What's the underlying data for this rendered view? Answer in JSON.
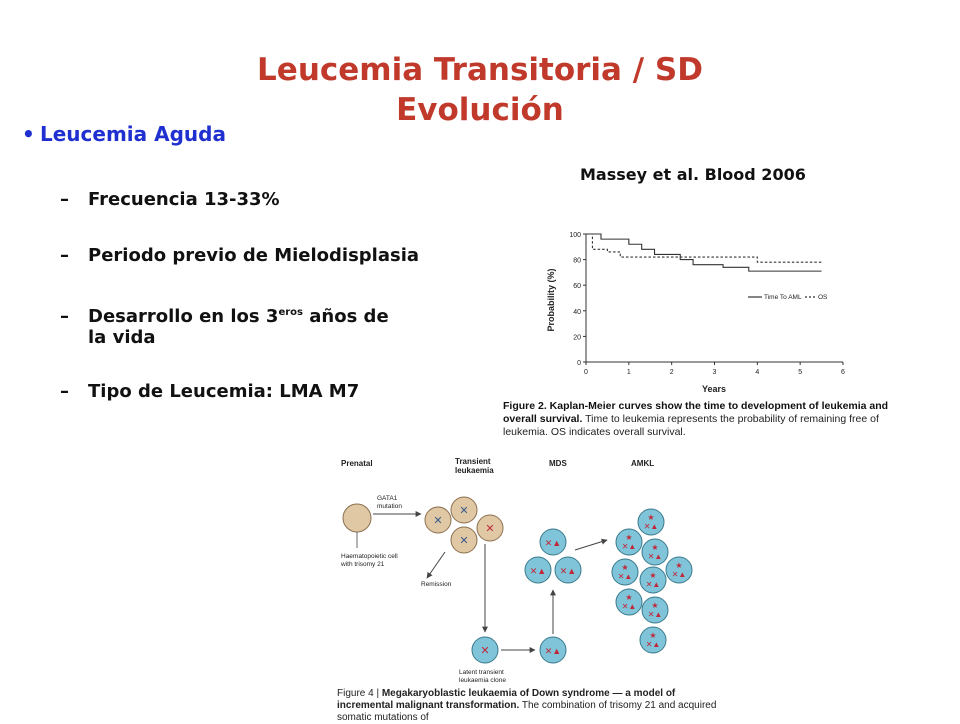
{
  "slide": {
    "title_line1": "Leucemia Transitoria / SD",
    "title_line2": "Evolución",
    "bullet": "Leucemia Aguda",
    "sub_items": {
      "freq": "Frecuencia 13-33%",
      "periodo": "Periodo previo de Mielodisplasia",
      "desarrollo_a": "Desarrollo en los 3",
      "desarrollo_sup": "eros",
      "desarrollo_b": " años de",
      "desarrollo_c": "la vida",
      "tipo": "Tipo de Leucemia: LMA M7"
    },
    "citation": "Massey et al. Blood 2006"
  },
  "km_figure": {
    "ylabel": "Probability (%)",
    "xlabel": "Years",
    "legend_aml": "Time To AML",
    "legend_os": "OS",
    "caption_bold": "Figure 2. Kaplan-Meier curves show the time to development of leukemia and overall survival.",
    "caption_rest": " Time to leukemia represents the probability of remaining free of leukemia. OS indicates overall survival.",
    "chart_data": {
      "type": "line",
      "xlim": [
        0,
        6
      ],
      "ylim": [
        0,
        100
      ],
      "xticks": [
        0,
        1,
        2,
        3,
        4,
        5,
        6
      ],
      "yticks": [
        0,
        20,
        40,
        60,
        80,
        100
      ],
      "legend_position": "right",
      "series": [
        {
          "name": "Time To AML",
          "style": "solid",
          "x": [
            0,
            0.35,
            0.35,
            1.0,
            1.0,
            1.3,
            1.3,
            1.6,
            1.6,
            2.2,
            2.2,
            2.5,
            2.5,
            3.2,
            3.2,
            3.8,
            3.8,
            5.5
          ],
          "y": [
            100,
            100,
            96,
            96,
            92,
            92,
            88,
            88,
            84,
            84,
            80,
            80,
            76,
            76,
            74,
            74,
            71,
            71
          ]
        },
        {
          "name": "OS",
          "style": "dashed",
          "x": [
            0,
            0.15,
            0.15,
            0.5,
            0.5,
            0.8,
            0.8,
            4.0,
            4.0,
            5.5
          ],
          "y": [
            100,
            100,
            88,
            88,
            86,
            86,
            82,
            82,
            78,
            78
          ]
        }
      ]
    }
  },
  "fig4": {
    "col_prenatal": "Prenatal",
    "col_transient_1": "Transient",
    "col_transient_2": "leukaemia",
    "col_mds": "MDS",
    "col_amkl": "AMKL",
    "gata_1": "GATA1",
    "gata_2": "mutation",
    "haem_1": "Haematopoietic cell",
    "haem_2": "with trisomy 21",
    "remission": "Remission",
    "latent_1": "Latent transient",
    "latent_2": "leukaemia clone",
    "caption_lead": "Figure 4 | ",
    "caption_bold": "Megakaryoblastic leukaemia of Down syndrome — a model of incremental malignant transformation.",
    "caption_rest": " The combination of trisomy 21 and acquired somatic mutations of"
  },
  "colors": {
    "title": "#c0392b",
    "bullet": "#1f2fd0",
    "prenatal_cell": "#e0c8a4",
    "blast_cell": "#7fc4d8",
    "marker_red": "#c0283a",
    "marker_blue": "#3a5a8c"
  }
}
